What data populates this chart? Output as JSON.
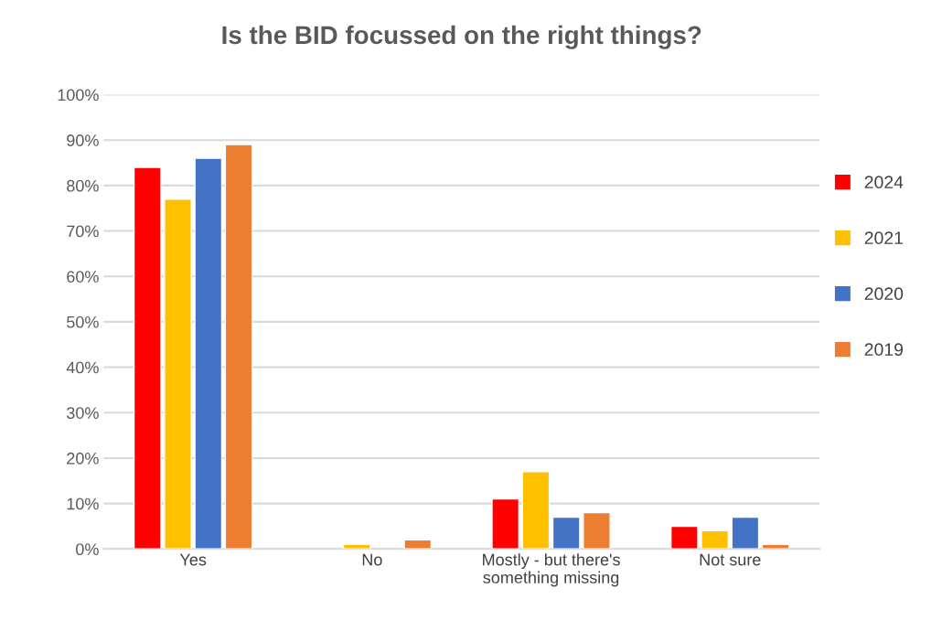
{
  "chart_data": {
    "type": "bar",
    "title": "Is the BID focussed on the right things?",
    "categories": [
      "Yes",
      "No",
      "Mostly - but there's\nsomething missing",
      "Not sure"
    ],
    "series": [
      {
        "name": "2024",
        "color": "#ff0000",
        "values": [
          84,
          null,
          11,
          5
        ]
      },
      {
        "name": "2021",
        "color": "#ffc000",
        "values": [
          77,
          1,
          17,
          4
        ]
      },
      {
        "name": "2020",
        "color": "#4472c4",
        "values": [
          86,
          null,
          7,
          7
        ]
      },
      {
        "name": "2019",
        "color": "#ed7d31",
        "values": [
          89,
          2,
          8,
          1
        ]
      }
    ],
    "ylim": [
      0,
      100
    ],
    "yticks": [
      {
        "value": 0,
        "label": "0%"
      },
      {
        "value": 10,
        "label": "10%"
      },
      {
        "value": 20,
        "label": "20%"
      },
      {
        "value": 30,
        "label": "30%"
      },
      {
        "value": 40,
        "label": "40%"
      },
      {
        "value": 50,
        "label": "50%"
      },
      {
        "value": 60,
        "label": "60%"
      },
      {
        "value": 70,
        "label": "70%"
      },
      {
        "value": 80,
        "label": "80%"
      },
      {
        "value": 90,
        "label": "90%"
      },
      {
        "value": 100,
        "label": "100%"
      }
    ],
    "grid": "y",
    "legend": "right"
  }
}
